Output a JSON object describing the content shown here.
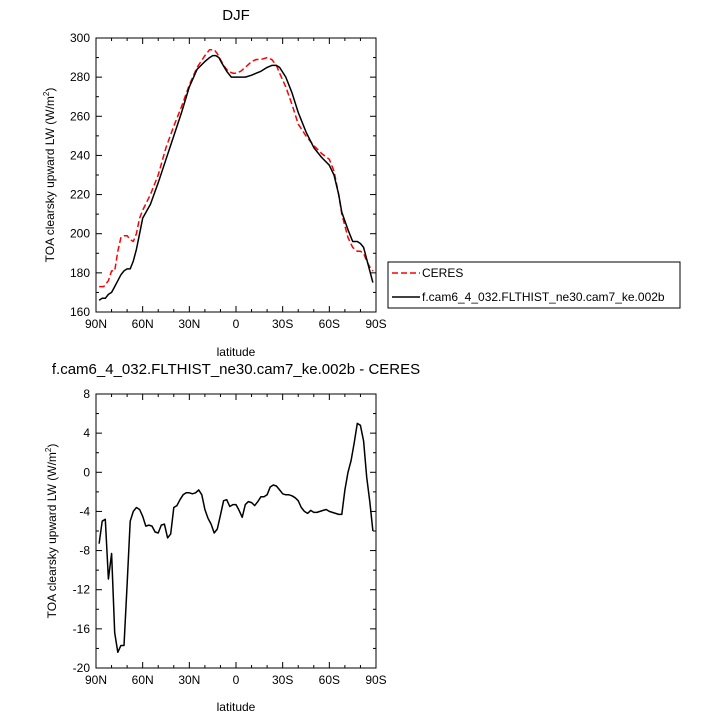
{
  "chart_data": [
    {
      "type": "line",
      "title": "DJF",
      "xlabel": "latitude",
      "ylabel": "TOA clearsky upward LW (W/m",
      "ylabel_sup": "2",
      "ylabel_end": ")",
      "xlim": [
        90,
        -90
      ],
      "ylim": [
        160,
        300
      ],
      "x_ticks": [
        90,
        60,
        30,
        0,
        -30,
        -60,
        -90
      ],
      "x_tick_labels": [
        "90N",
        "60N",
        "30N",
        "0",
        "30S",
        "60S",
        "90S"
      ],
      "y_ticks": [
        160,
        180,
        200,
        220,
        240,
        260,
        280,
        300
      ],
      "y_tick_labels": [
        "160",
        "180",
        "200",
        "220",
        "240",
        "260",
        "280",
        "300"
      ],
      "grid": false,
      "legend": {
        "placement": "right-outside"
      },
      "series": [
        {
          "name": "CERES",
          "color": "#ff0000",
          "dash": "dashed",
          "x": [
            88,
            85,
            82,
            80,
            78,
            76,
            74,
            72,
            70,
            68,
            66,
            64,
            62,
            60,
            55,
            50,
            45,
            40,
            35,
            30,
            25,
            20,
            17,
            14,
            12,
            10,
            8,
            5,
            2,
            0,
            -3,
            -6,
            -10,
            -13,
            -16,
            -20,
            -23,
            -26,
            -28,
            -32,
            -36,
            -40,
            -45,
            -50,
            -55,
            -60,
            -63,
            -66,
            -68,
            -72,
            -75,
            -78,
            -80,
            -82,
            -84,
            -86,
            -88
          ],
          "y": [
            173,
            173,
            176,
            181,
            181,
            191,
            198,
            199,
            199,
            197,
            196,
            200,
            208,
            212,
            220,
            230,
            244,
            255,
            265,
            276,
            285,
            291,
            294,
            294,
            292,
            289,
            286,
            283,
            282,
            282,
            283,
            285,
            288,
            289,
            289,
            290,
            289,
            286,
            282,
            275,
            266,
            256,
            250,
            245,
            241,
            238,
            232,
            220,
            210,
            198,
            193,
            191,
            191,
            190,
            186,
            183,
            181
          ]
        },
        {
          "name": "f.cam6_4_032.FLTHIST_ne30.cam7_ke.002b",
          "color": "#000000",
          "dash": "solid",
          "x": [
            88,
            86,
            84,
            82,
            80,
            78,
            76,
            74,
            72,
            70,
            68,
            66,
            64,
            62,
            60,
            55,
            50,
            45,
            40,
            35,
            30,
            25,
            20,
            17,
            15,
            13,
            11,
            9,
            6,
            3,
            0,
            -3,
            -6,
            -10,
            -13,
            -16,
            -20,
            -23,
            -26,
            -28,
            -32,
            -36,
            -40,
            -45,
            -50,
            -55,
            -60,
            -63,
            -66,
            -68,
            -72,
            -75,
            -78,
            -80,
            -82,
            -84,
            -86,
            -88
          ],
          "y": [
            166,
            167,
            167,
            169,
            170,
            173,
            176,
            179,
            181,
            182,
            182,
            186,
            192,
            200,
            208,
            215,
            226,
            238,
            250,
            262,
            275,
            284,
            288,
            290,
            291,
            291,
            290,
            287,
            283,
            280,
            280,
            280,
            280,
            281,
            282,
            283,
            285,
            286,
            286,
            285,
            280,
            272,
            262,
            252,
            244,
            239,
            235,
            230,
            220,
            211,
            202,
            196,
            196,
            195,
            193,
            187,
            181,
            175
          ]
        }
      ]
    },
    {
      "type": "line",
      "title": "f.cam6_4_032.FLTHIST_ne30.cam7_ke.002b - CERES",
      "xlabel": "latitude",
      "ylabel": "TOA clearsky upward LW (W/m",
      "ylabel_sup": "2",
      "ylabel_end": ")",
      "xlim": [
        90,
        -90
      ],
      "ylim": [
        -20,
        8
      ],
      "x_ticks": [
        90,
        60,
        30,
        0,
        -30,
        -60,
        -90
      ],
      "x_tick_labels": [
        "90N",
        "60N",
        "30N",
        "0",
        "30S",
        "60S",
        "90S"
      ],
      "y_ticks": [
        -20,
        -16,
        -12,
        -8,
        -4,
        0,
        4,
        8
      ],
      "y_tick_labels": [
        "-20",
        "-16",
        "-12",
        "-8",
        "-4",
        "0",
        "4",
        "8"
      ],
      "grid": false,
      "series": [
        {
          "color": "#000000",
          "dash": "solid",
          "x": [
            88,
            86,
            84,
            82,
            80,
            78,
            76,
            74,
            72,
            70,
            68,
            66,
            64,
            62,
            60,
            58,
            56,
            54,
            52,
            50,
            48,
            46,
            44,
            42,
            40,
            38,
            36,
            34,
            32,
            30,
            28,
            26,
            24,
            22,
            20,
            18,
            16,
            14,
            12,
            10,
            8,
            6,
            4,
            2,
            0,
            -2,
            -4,
            -6,
            -8,
            -10,
            -12,
            -14,
            -16,
            -18,
            -20,
            -22,
            -24,
            -26,
            -28,
            -30,
            -32,
            -34,
            -36,
            -38,
            -40,
            -42,
            -44,
            -46,
            -48,
            -50,
            -52,
            -54,
            -56,
            -58,
            -60,
            -62,
            -64,
            -66,
            -68,
            -70,
            -72,
            -74,
            -76,
            -78,
            -80,
            -82,
            -84,
            -86,
            -88
          ],
          "y": [
            -7.3,
            -5.0,
            -4.8,
            -10.9,
            -8.3,
            -16.4,
            -18.4,
            -17.7,
            -17.7,
            -11.5,
            -5.0,
            -4.0,
            -3.6,
            -3.8,
            -4.5,
            -5.5,
            -5.4,
            -5.5,
            -6.1,
            -6.2,
            -5.4,
            -5.3,
            -6.7,
            -6.3,
            -3.6,
            -3.4,
            -2.8,
            -2.3,
            -2.1,
            -2.1,
            -2.2,
            -2.1,
            -1.8,
            -2.3,
            -3.8,
            -4.7,
            -5.3,
            -6.2,
            -5.8,
            -4.4,
            -2.9,
            -2.8,
            -3.5,
            -3.3,
            -3.3,
            -3.9,
            -4.6,
            -3.3,
            -3.0,
            -3.1,
            -3.4,
            -3.0,
            -2.5,
            -2.5,
            -2.3,
            -1.5,
            -1.3,
            -1.4,
            -1.8,
            -2.2,
            -2.3,
            -2.3,
            -2.4,
            -2.6,
            -2.9,
            -3.6,
            -4.0,
            -4.2,
            -3.9,
            -4.1,
            -4.1,
            -4.0,
            -3.9,
            -3.8,
            -4.0,
            -4.1,
            -4.2,
            -4.3,
            -4.3,
            -1.8,
            0.0,
            1.2,
            3.0,
            5.0,
            4.8,
            3.2,
            -0.5,
            -3.0,
            -6.0
          ]
        }
      ]
    }
  ]
}
